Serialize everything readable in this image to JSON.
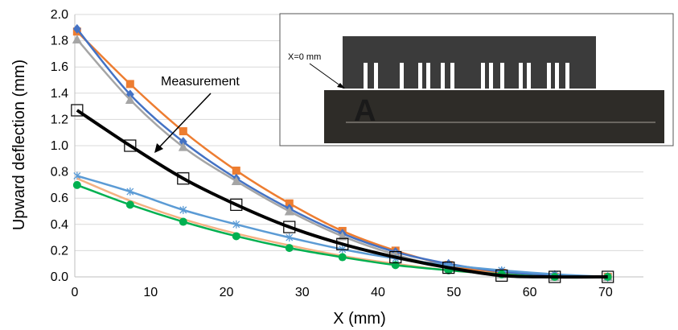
{
  "chart_data": {
    "type": "line",
    "title": "",
    "xlabel": "X (mm)",
    "ylabel": "Upward deflection (mm)",
    "xlim": [
      0,
      75
    ],
    "ylim": [
      0,
      2.0
    ],
    "xticks": [
      "0",
      "10",
      "20",
      "30",
      "40",
      "50",
      "60",
      "70"
    ],
    "yticks": [
      "0.0",
      "0.2",
      "0.4",
      "0.6",
      "0.8",
      "1.0",
      "1.2",
      "1.4",
      "1.6",
      "1.8",
      "2.0"
    ],
    "grid": "horizontal",
    "legend": "none",
    "annotations": {
      "measurement": "Measurement",
      "inset_label": "X=0 mm"
    },
    "series": [
      {
        "color": "#ED7D31",
        "marker": "square",
        "x": [
          0.3,
          7.3,
          14.3,
          21.3,
          28.3,
          35.3,
          42.3,
          49.3,
          56.3,
          63.3,
          70.3
        ],
        "y": [
          1.87,
          1.47,
          1.11,
          0.81,
          0.56,
          0.35,
          0.2,
          0.09,
          0.03,
          0.0,
          0.0
        ]
      },
      {
        "color": "#4472C4",
        "marker": "diamond",
        "x": [
          0.3,
          7.3,
          14.3,
          21.3,
          28.3,
          35.3,
          42.3,
          49.3,
          56.3,
          63.3,
          70.3
        ],
        "y": [
          1.89,
          1.39,
          1.03,
          0.75,
          0.52,
          0.33,
          0.19,
          0.1,
          0.04,
          0.01,
          0.0
        ]
      },
      {
        "color": "#A5A5A5",
        "marker": "triangle",
        "x": [
          0.3,
          7.3,
          14.3,
          21.3,
          28.3,
          35.3,
          42.3,
          49.3,
          56.3,
          63.3,
          70.3
        ],
        "y": [
          1.81,
          1.35,
          0.99,
          0.73,
          0.5,
          0.31,
          0.17,
          0.07,
          0.02,
          0.0,
          0.0
        ]
      },
      {
        "color": "#5B9BD5",
        "marker": "star",
        "x": [
          0.3,
          7.3,
          14.3,
          21.3,
          28.3,
          35.3,
          42.3,
          49.3,
          56.3,
          63.3,
          70.3
        ],
        "y": [
          0.77,
          0.65,
          0.51,
          0.4,
          0.3,
          0.21,
          0.14,
          0.09,
          0.05,
          0.02,
          0.0
        ]
      },
      {
        "color": "#F4B183",
        "marker": "none",
        "x": [
          0.3,
          7.3,
          14.3,
          21.3,
          28.3,
          35.3,
          42.3,
          49.3,
          56.3,
          63.3,
          70.3
        ],
        "y": [
          0.75,
          0.58,
          0.44,
          0.33,
          0.24,
          0.16,
          0.1,
          0.05,
          0.02,
          0.0,
          0.0
        ]
      },
      {
        "color": "#00B050",
        "marker": "circle",
        "x": [
          0.3,
          7.3,
          14.3,
          21.3,
          28.3,
          35.3,
          42.3,
          49.3,
          56.3,
          63.3,
          70.3
        ],
        "y": [
          0.7,
          0.55,
          0.42,
          0.31,
          0.22,
          0.15,
          0.09,
          0.05,
          0.02,
          0.0,
          0.0
        ]
      },
      {
        "color": "#000000",
        "marker": "open-square",
        "x": [
          0.3,
          7.3,
          14.3,
          21.3,
          28.3,
          35.3,
          42.3,
          49.3,
          56.3,
          63.3,
          70.3
        ],
        "y": [
          1.27,
          1.0,
          0.75,
          0.55,
          0.38,
          0.25,
          0.15,
          0.07,
          0.01,
          0.0,
          0.0
        ]
      }
    ]
  }
}
